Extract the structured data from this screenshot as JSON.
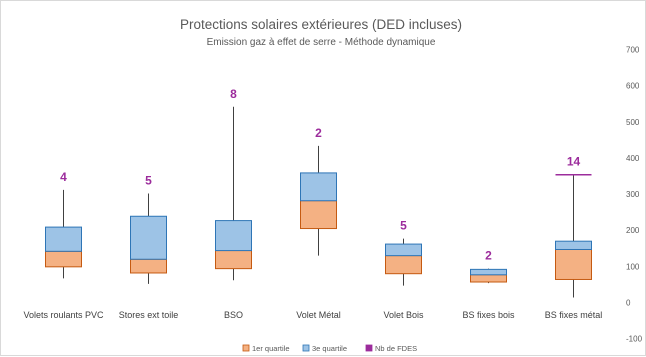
{
  "chart_data": {
    "type": "boxplot",
    "title": "Protections solaires extérieures (DED incluses)",
    "subtitle": "Emission gaz à effet de serre - Méthode dynamique",
    "ylim": [
      -100,
      700
    ],
    "yticks": [
      -100,
      0,
      100,
      200,
      300,
      400,
      500,
      600,
      700
    ],
    "grid": false,
    "legend_position": "bottom",
    "legend": [
      {
        "label": "1er quartile",
        "color": "#f4b183"
      },
      {
        "label": "3e quartile",
        "color": "#9dc3e6"
      },
      {
        "label": "Nb de FDES",
        "color": "#9c2c9c"
      }
    ],
    "categories": [
      "Volets roulants PVC",
      "Stores ext toile",
      "BSO",
      "Volet Métal",
      "Volet Bois",
      "BS fixes bois",
      "BS fixes métal"
    ],
    "series": [
      {
        "category": "Volets roulants PVC",
        "min": 65,
        "q1": 97,
        "median": 140,
        "q3": 207,
        "max": 310,
        "count": "4"
      },
      {
        "category": "Stores ext toile",
        "min": 50,
        "q1": 80,
        "median": 118,
        "q3": 237,
        "max": 300,
        "count": "5"
      },
      {
        "category": "BSO",
        "min": 60,
        "q1": 92,
        "median": 142,
        "q3": 225,
        "max": 540,
        "count": "8"
      },
      {
        "category": "Volet Métal",
        "min": 128,
        "q1": 203,
        "median": 280,
        "q3": 357,
        "max": 432,
        "count": "2"
      },
      {
        "category": "Volet Bois",
        "min": 45,
        "q1": 78,
        "median": 128,
        "q3": 160,
        "max": 175,
        "count": "5"
      },
      {
        "category": "BS fixes bois",
        "min": 52,
        "q1": 55,
        "median": 75,
        "q3": 90,
        "max": 92,
        "count": "2"
      },
      {
        "category": "BS fixes métal",
        "min": 12,
        "q1": 62,
        "median": 145,
        "q3": 168,
        "max": 352,
        "count": "14"
      }
    ],
    "colors": {
      "q1": "#f4b183",
      "q3": "#9dc3e6",
      "box_border": "#c55a11",
      "q3_border": "#2e75b6",
      "count": "#9c2c9c",
      "axis_text": "#595959",
      "whisker": "#404040"
    }
  }
}
